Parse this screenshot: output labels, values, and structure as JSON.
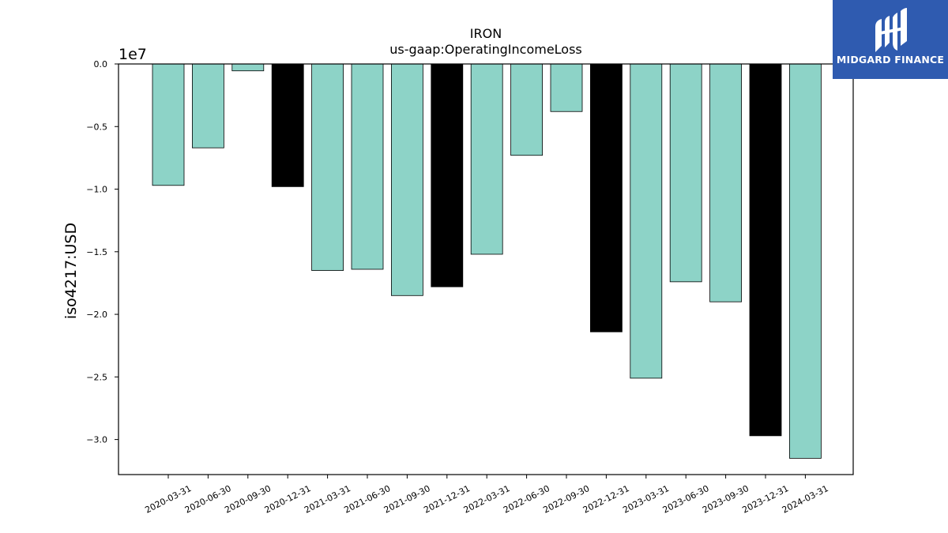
{
  "brand": {
    "name": "MIDGARD FINANCE",
    "bg_color": "#2f5bb0"
  },
  "chart_data": {
    "type": "bar",
    "title": "IRON",
    "subtitle": "us-gaap:OperatingIncomeLoss",
    "ylabel": "iso4217:USD",
    "y_exponent_label": "1e7",
    "ylim": [
      -32800000,
      0
    ],
    "yticks": [
      0.0,
      -0.5,
      -1.0,
      -1.5,
      -2.0,
      -2.5,
      -3.0
    ],
    "ytick_labels": [
      "0.0",
      "−0.5",
      "−1.0",
      "−1.5",
      "−2.0",
      "−2.5",
      "−3.0"
    ],
    "grid": false,
    "categories": [
      "2020-03-31",
      "2020-06-30",
      "2020-09-30",
      "2020-12-31",
      "2021-03-31",
      "2021-06-30",
      "2021-09-30",
      "2021-12-31",
      "2022-03-31",
      "2022-06-30",
      "2022-09-30",
      "2022-12-31",
      "2023-03-31",
      "2023-06-30",
      "2023-09-30",
      "2023-12-31",
      "2024-03-31"
    ],
    "values": [
      -9700000,
      -6700000,
      -550000,
      -9800000,
      -16500000,
      -16400000,
      -18500000,
      -17800000,
      -15200000,
      -7300000,
      -3800000,
      -21400000,
      -25100000,
      -17400000,
      -19000000,
      -29700000,
      -31500000
    ],
    "bar_colors": [
      "#8dd3c7",
      "#8dd3c7",
      "#8dd3c7",
      "#000000",
      "#8dd3c7",
      "#8dd3c7",
      "#8dd3c7",
      "#000000",
      "#8dd3c7",
      "#8dd3c7",
      "#8dd3c7",
      "#000000",
      "#8dd3c7",
      "#8dd3c7",
      "#8dd3c7",
      "#000000",
      "#8dd3c7"
    ]
  }
}
